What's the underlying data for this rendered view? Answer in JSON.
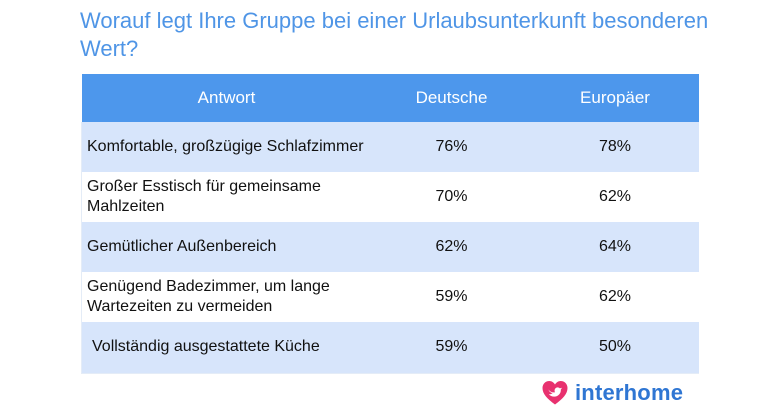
{
  "title": "Worauf legt Ihre Gruppe bei einer Urlaubsunterkunft besonderen Wert?",
  "table": {
    "headers": [
      "Antwort",
      "Deutsche",
      "Europäer"
    ],
    "rows": [
      {
        "answer": "Komfortable, großzügige Schlafzimmer",
        "deutsche": "76%",
        "europaeer": "78%"
      },
      {
        "answer": "Großer Esstisch für gemeinsame Mahlzeiten",
        "deutsche": "70%",
        "europaeer": "62%"
      },
      {
        "answer": "Gemütlicher Außenbereich",
        "deutsche": "62%",
        "europaeer": "64%"
      },
      {
        "answer": "Genügend Badezimmer, um lange Wartezeiten zu vermeiden",
        "deutsche": "59%",
        "europaeer": "62%"
      },
      {
        "answer": "Vollständig ausgestattete Küche",
        "deutsche": "59%",
        "europaeer": "50%"
      }
    ]
  },
  "chart_data": {
    "type": "table",
    "title": "Worauf legt Ihre Gruppe bei einer Urlaubsunterkunft besonderen Wert?",
    "columns": [
      "Antwort",
      "Deutsche",
      "Europäer"
    ],
    "categories": [
      "Komfortable, großzügige Schlafzimmer",
      "Großer Esstisch für gemeinsame Mahlzeiten",
      "Gemütlicher Außenbereich",
      "Genügend Badezimmer, um lange Wartezeiten zu vermeiden",
      "Vollständig ausgestattete Küche"
    ],
    "series": [
      {
        "name": "Deutsche",
        "values": [
          76,
          70,
          62,
          59,
          59
        ]
      },
      {
        "name": "Europäer",
        "values": [
          78,
          62,
          64,
          62,
          50
        ]
      }
    ],
    "unit": "%"
  },
  "brand": {
    "name": "interhome",
    "icon": "heart-bird-logo-icon",
    "icon_color": "#e8316f",
    "text_color": "#2f76d3"
  },
  "colors": {
    "title": "#4f95e6",
    "header_bg": "#4d97ec",
    "row_stripe": "#d7e5fb"
  }
}
